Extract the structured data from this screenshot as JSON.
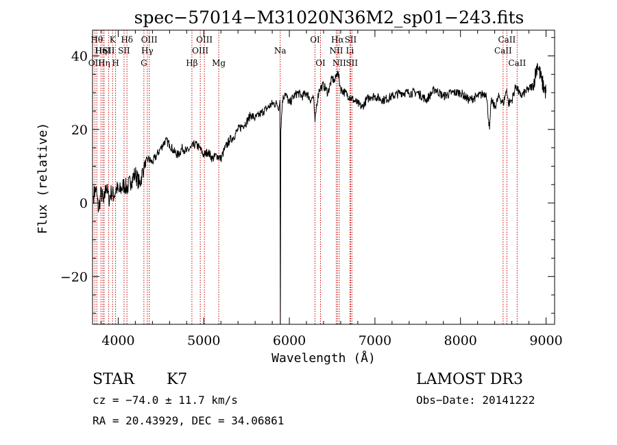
{
  "chart_data": {
    "type": "line",
    "title": "spec−57014−M31020N36M2_sp01−243.fits",
    "xlabel": "Wavelength (Å)",
    "ylabel": "Flux (relative)",
    "xlim": [
      3700,
      9100
    ],
    "ylim": [
      -33,
      47
    ],
    "xticks": [
      4000,
      5000,
      6000,
      7000,
      8000,
      9000
    ],
    "xtick_labels": [
      "4000",
      "5000",
      "6000",
      "7000",
      "8000",
      "9000"
    ],
    "yticks": [
      -20,
      0,
      20,
      40
    ],
    "ytick_labels": [
      "−20",
      "0",
      "20",
      "40"
    ],
    "series": [
      {
        "name": "flux",
        "x": [
          3710,
          3740,
          3770,
          3800,
          3830,
          3860,
          3890,
          3920,
          3950,
          3980,
          4010,
          4040,
          4070,
          4100,
          4150,
          4200,
          4250,
          4300,
          4350,
          4400,
          4450,
          4500,
          4550,
          4600,
          4650,
          4700,
          4750,
          4800,
          4850,
          4900,
          4950,
          5000,
          5050,
          5100,
          5150,
          5200,
          5250,
          5300,
          5350,
          5400,
          5450,
          5500,
          5550,
          5600,
          5650,
          5700,
          5750,
          5800,
          5850,
          5880,
          5890,
          5895,
          5900,
          5920,
          5950,
          6000,
          6050,
          6100,
          6150,
          6200,
          6250,
          6280,
          6300,
          6320,
          6350,
          6400,
          6450,
          6500,
          6530,
          6563,
          6600,
          6650,
          6700,
          6750,
          6800,
          6850,
          6900,
          6950,
          7000,
          7100,
          7200,
          7300,
          7400,
          7500,
          7600,
          7700,
          7800,
          7900,
          8000,
          8100,
          8200,
          8300,
          8340,
          8360,
          8400,
          8450,
          8500,
          8540,
          8560,
          8600,
          8650,
          8700,
          8750,
          8800,
          8850,
          8900,
          8950,
          9000
        ],
        "values": [
          2,
          4,
          -2,
          3,
          0,
          5,
          1,
          3,
          2,
          4,
          3,
          4,
          5,
          4,
          6,
          8,
          5,
          10,
          12,
          11,
          13,
          15,
          17,
          16,
          14,
          13,
          15,
          14,
          15,
          16,
          15,
          13,
          14,
          12,
          13,
          12,
          15,
          17,
          18,
          20,
          21,
          22,
          24,
          23,
          24,
          25,
          26,
          27,
          27,
          26,
          28,
          -33,
          20,
          28,
          30,
          27,
          29,
          30,
          29,
          30,
          28,
          29,
          22,
          27,
          31,
          32,
          30,
          34,
          33,
          36,
          31,
          30,
          29,
          28,
          27,
          26,
          28,
          29,
          29,
          28,
          29,
          30,
          30,
          30,
          28,
          31,
          29,
          30,
          30,
          28,
          29,
          30,
          20,
          28,
          26,
          29,
          27,
          31,
          27,
          28,
          32,
          29,
          30,
          31,
          32,
          38,
          33,
          30
        ]
      }
    ],
    "lines": [
      {
        "wave": 3727,
        "label": "OII",
        "row": 2
      },
      {
        "wave": 3750,
        "label": "Hθ",
        "row": 0
      },
      {
        "wave": 3798,
        "label": "Hη",
        "row": 1
      },
      {
        "wave": 3820,
        "label": "HeI",
        "row": 1
      },
      {
        "wave": 3835,
        "label": "Hη",
        "row": 2
      },
      {
        "wave": 3889,
        "label": "SII",
        "row": 1
      },
      {
        "wave": 3934,
        "label": "K",
        "row": 0
      },
      {
        "wave": 3969,
        "label": "H",
        "row": 2
      },
      {
        "wave": 4068,
        "label": "SII",
        "row": 1
      },
      {
        "wave": 4102,
        "label": "Hδ",
        "row": 0
      },
      {
        "wave": 4300,
        "label": "G",
        "row": 2
      },
      {
        "wave": 4340,
        "label": "Hγ",
        "row": 1
      },
      {
        "wave": 4363,
        "label": "OIII",
        "row": 0
      },
      {
        "wave": 4861,
        "label": "Hβ",
        "row": 2
      },
      {
        "wave": 4959,
        "label": "OIII",
        "row": 1
      },
      {
        "wave": 5007,
        "label": "OIII",
        "row": 0
      },
      {
        "wave": 5175,
        "label": "Mg",
        "row": 2
      },
      {
        "wave": 5893,
        "label": "Na",
        "row": 1
      },
      {
        "wave": 6300,
        "label": "OI",
        "row": 0
      },
      {
        "wave": 6364,
        "label": "OI",
        "row": 2
      },
      {
        "wave": 6548,
        "label": "NII",
        "row": 1
      },
      {
        "wave": 6563,
        "label": "Hα",
        "row": 0
      },
      {
        "wave": 6583,
        "label": "NII",
        "row": 2
      },
      {
        "wave": 6708,
        "label": "Li",
        "row": 1
      },
      {
        "wave": 6716,
        "label": "SII",
        "row": 0
      },
      {
        "wave": 6731,
        "label": "SII",
        "row": 2
      },
      {
        "wave": 8498,
        "label": "CaII",
        "row": 1
      },
      {
        "wave": 8542,
        "label": "CaII",
        "row": 0
      },
      {
        "wave": 8662,
        "label": "CaII",
        "row": 2
      }
    ]
  },
  "footer": {
    "class": "STAR",
    "subclass": "K7",
    "survey": "LAMOST DR3",
    "cz": "cz = −74.0 ± 11.7 km/s",
    "obs_date": "Obs−Date: 20141222",
    "coords": "RA =  20.43929, DEC =  34.06861"
  },
  "colors": {
    "axis": "#000000",
    "spectrum": "#000000",
    "line_marker": "#c00000"
  }
}
